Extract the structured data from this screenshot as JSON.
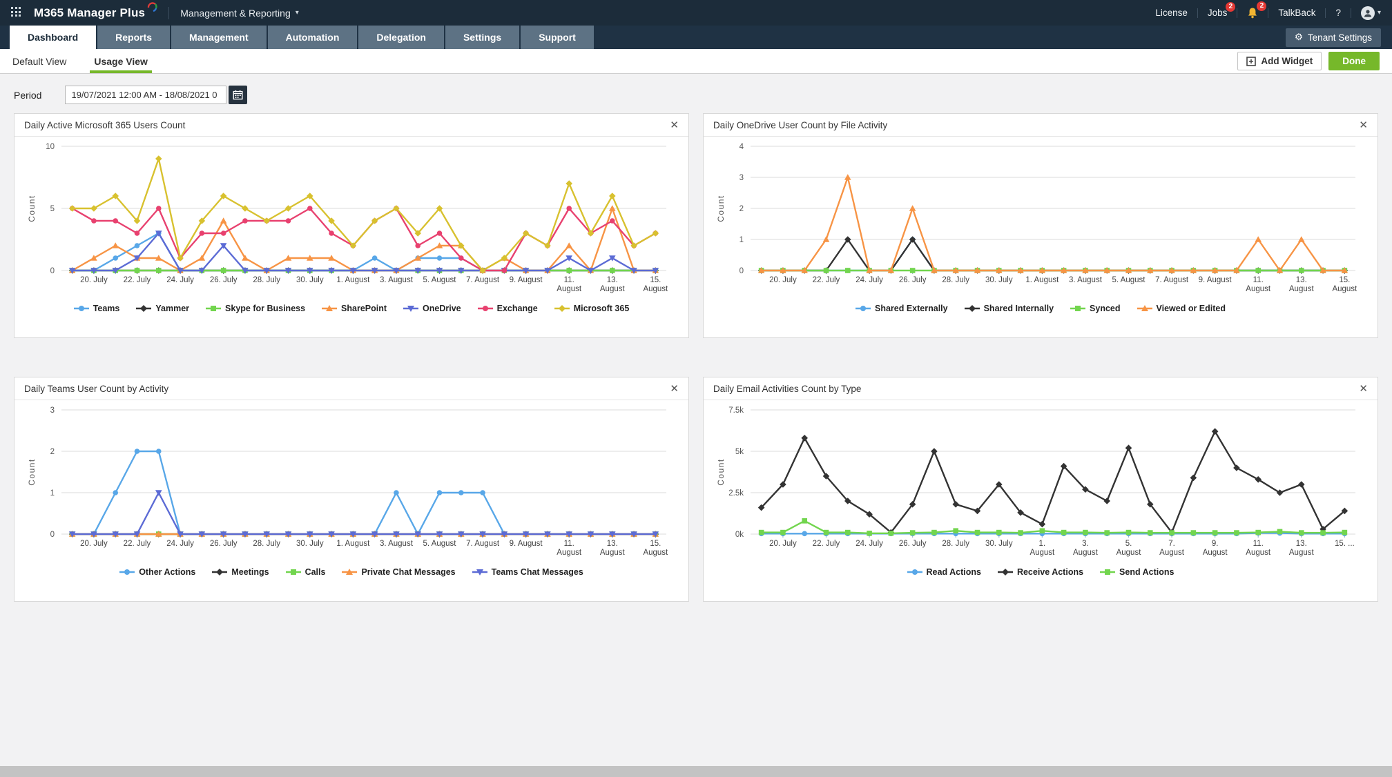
{
  "topbar": {
    "app_title": "M365 Manager Plus",
    "section_title": "Management & Reporting",
    "license_label": "License",
    "jobs_label": "Jobs",
    "jobs_badge": "2",
    "bell_badge": "2",
    "talkback_label": "TalkBack",
    "help_label": "?"
  },
  "nav_tabs": [
    {
      "label": "Dashboard",
      "active": true
    },
    {
      "label": "Reports",
      "active": false
    },
    {
      "label": "Management",
      "active": false
    },
    {
      "label": "Automation",
      "active": false
    },
    {
      "label": "Delegation",
      "active": false
    },
    {
      "label": "Settings",
      "active": false
    },
    {
      "label": "Support",
      "active": false
    }
  ],
  "tenant_settings_label": "Tenant Settings",
  "view_tabs": [
    {
      "label": "Default View",
      "active": false
    },
    {
      "label": "Usage View",
      "active": true
    }
  ],
  "add_widget_label": "Add Widget",
  "done_label": "Done",
  "period": {
    "label": "Period",
    "value": "19/07/2021 12:00 AM - 18/08/2021 0"
  },
  "colors": {
    "accent_green": "#76b82a",
    "badge_red": "#e53935",
    "topbar_bg": "#1c2c3a"
  },
  "chart_data": [
    {
      "type": "line",
      "title": "Daily Active Microsoft 365 Users Count",
      "ylabel": "Count",
      "ylim": [
        0,
        10
      ],
      "grid": true,
      "legend_position": "bottom",
      "yticks": [
        {
          "v": 0,
          "label": "0"
        },
        {
          "v": 5,
          "label": "5"
        },
        {
          "v": 10,
          "label": "10"
        }
      ],
      "x": [
        "19 Jul",
        "20 Jul",
        "21 Jul",
        "22 Jul",
        "23 Jul",
        "24 Jul",
        "25 Jul",
        "26 Jul",
        "27 Jul",
        "28 Jul",
        "29 Jul",
        "30 Jul",
        "31 Jul",
        "1 Aug",
        "2 Aug",
        "3 Aug",
        "4 Aug",
        "5 Aug",
        "6 Aug",
        "7 Aug",
        "8 Aug",
        "9 Aug",
        "10 Aug",
        "11 Aug",
        "12 Aug",
        "13 Aug",
        "14 Aug",
        "15 Aug"
      ],
      "tick_labels": [
        "20. July",
        "22. July",
        "24. July",
        "26. July",
        "28. July",
        "30. July",
        "1. August",
        "3. August",
        "5. August",
        "7. August",
        "9. August",
        "11.\nAugust",
        "13.\nAugust",
        "15.\nAugust"
      ],
      "series": [
        {
          "name": "Teams",
          "color": "#58a7e8",
          "marker": "circle",
          "values": [
            0,
            0,
            1,
            2,
            3,
            0,
            0,
            0,
            0,
            0,
            0,
            0,
            0,
            0,
            1,
            0,
            1,
            1,
            1,
            0,
            0,
            0,
            0,
            0,
            0,
            0,
            0,
            0
          ]
        },
        {
          "name": "Yammer",
          "color": "#333333",
          "marker": "diamond",
          "values": [
            0,
            0,
            0,
            0,
            0,
            0,
            0,
            0,
            0,
            0,
            0,
            0,
            0,
            0,
            0,
            0,
            0,
            0,
            0,
            0,
            0,
            0,
            0,
            0,
            0,
            0,
            0,
            0
          ]
        },
        {
          "name": "Skype for Business",
          "color": "#72d54e",
          "marker": "square",
          "values": [
            0,
            0,
            0,
            0,
            0,
            0,
            0,
            0,
            0,
            0,
            0,
            0,
            0,
            0,
            0,
            0,
            0,
            0,
            0,
            0,
            0,
            0,
            0,
            0,
            0,
            0,
            0,
            0
          ]
        },
        {
          "name": "SharePoint",
          "color": "#f79445",
          "marker": "triangle-up",
          "values": [
            0,
            1,
            2,
            1,
            1,
            0,
            1,
            4,
            1,
            0,
            1,
            1,
            1,
            0,
            0,
            0,
            1,
            2,
            2,
            0,
            1,
            0,
            0,
            2,
            0,
            5,
            0,
            0
          ]
        },
        {
          "name": "OneDrive",
          "color": "#5c6bd5",
          "marker": "triangle-down",
          "values": [
            0,
            0,
            0,
            1,
            3,
            0,
            0,
            2,
            0,
            0,
            0,
            0,
            0,
            0,
            0,
            0,
            0,
            0,
            0,
            0,
            0,
            0,
            0,
            1,
            0,
            1,
            0,
            0
          ]
        },
        {
          "name": "Exchange",
          "color": "#e8416f",
          "marker": "circle",
          "values": [
            5,
            4,
            4,
            3,
            5,
            1,
            3,
            3,
            4,
            4,
            4,
            5,
            3,
            2,
            4,
            5,
            2,
            3,
            1,
            0,
            0,
            3,
            2,
            5,
            3,
            4,
            2,
            3
          ]
        },
        {
          "name": "Microsoft 365",
          "color": "#d8c12f",
          "marker": "diamond",
          "values": [
            5,
            5,
            6,
            4,
            9,
            1,
            4,
            6,
            5,
            4,
            5,
            6,
            4,
            2,
            4,
            5,
            3,
            5,
            2,
            0,
            1,
            3,
            2,
            7,
            3,
            6,
            2,
            3
          ]
        }
      ]
    },
    {
      "type": "line",
      "title": "Daily OneDrive User Count by File Activity",
      "ylabel": "Count",
      "ylim": [
        0,
        4
      ],
      "grid": true,
      "legend_position": "bottom",
      "yticks": [
        {
          "v": 0,
          "label": "0"
        },
        {
          "v": 1,
          "label": "1"
        },
        {
          "v": 2,
          "label": "2"
        },
        {
          "v": 3,
          "label": "3"
        },
        {
          "v": 4,
          "label": "4"
        }
      ],
      "x": [
        "19 Jul",
        "20 Jul",
        "21 Jul",
        "22 Jul",
        "23 Jul",
        "24 Jul",
        "25 Jul",
        "26 Jul",
        "27 Jul",
        "28 Jul",
        "29 Jul",
        "30 Jul",
        "31 Jul",
        "1 Aug",
        "2 Aug",
        "3 Aug",
        "4 Aug",
        "5 Aug",
        "6 Aug",
        "7 Aug",
        "8 Aug",
        "9 Aug",
        "10 Aug",
        "11 Aug",
        "12 Aug",
        "13 Aug",
        "14 Aug",
        "15 Aug"
      ],
      "tick_labels": [
        "20. July",
        "22. July",
        "24. July",
        "26. July",
        "28. July",
        "30. July",
        "1. August",
        "3. August",
        "5. August",
        "7. August",
        "9. August",
        "11.\nAugust",
        "13.\nAugust",
        "15.\nAugust"
      ],
      "series": [
        {
          "name": "Shared Externally",
          "color": "#58a7e8",
          "marker": "circle",
          "values": [
            0,
            0,
            0,
            0,
            0,
            0,
            0,
            1,
            0,
            0,
            0,
            0,
            0,
            0,
            0,
            0,
            0,
            0,
            0,
            0,
            0,
            0,
            0,
            0,
            0,
            0,
            0,
            0
          ]
        },
        {
          "name": "Shared Internally",
          "color": "#333333",
          "marker": "diamond",
          "values": [
            0,
            0,
            0,
            0,
            1,
            0,
            0,
            1,
            0,
            0,
            0,
            0,
            0,
            0,
            0,
            0,
            0,
            0,
            0,
            0,
            0,
            0,
            0,
            0,
            0,
            0,
            0,
            0
          ]
        },
        {
          "name": "Synced",
          "color": "#72d54e",
          "marker": "square",
          "values": [
            0,
            0,
            0,
            0,
            0,
            0,
            0,
            0,
            0,
            0,
            0,
            0,
            0,
            0,
            0,
            0,
            0,
            0,
            0,
            0,
            0,
            0,
            0,
            0,
            0,
            0,
            0,
            0
          ]
        },
        {
          "name": "Viewed or Edited",
          "color": "#f79445",
          "marker": "triangle-up",
          "values": [
            0,
            0,
            0,
            1,
            3,
            0,
            0,
            2,
            0,
            0,
            0,
            0,
            0,
            0,
            0,
            0,
            0,
            0,
            0,
            0,
            0,
            0,
            0,
            1,
            0,
            1,
            0,
            0
          ]
        }
      ]
    },
    {
      "type": "line",
      "title": "Daily Teams User Count by Activity",
      "ylabel": "Count",
      "ylim": [
        0,
        3
      ],
      "grid": true,
      "legend_position": "bottom",
      "yticks": [
        {
          "v": 0,
          "label": "0"
        },
        {
          "v": 1,
          "label": "1"
        },
        {
          "v": 2,
          "label": "2"
        },
        {
          "v": 3,
          "label": "3"
        }
      ],
      "x": [
        "19 Jul",
        "20 Jul",
        "21 Jul",
        "22 Jul",
        "23 Jul",
        "24 Jul",
        "25 Jul",
        "26 Jul",
        "27 Jul",
        "28 Jul",
        "29 Jul",
        "30 Jul",
        "31 Jul",
        "1 Aug",
        "2 Aug",
        "3 Aug",
        "4 Aug",
        "5 Aug",
        "6 Aug",
        "7 Aug",
        "8 Aug",
        "9 Aug",
        "10 Aug",
        "11 Aug",
        "12 Aug",
        "13 Aug",
        "14 Aug",
        "15 Aug"
      ],
      "tick_labels": [
        "20. July",
        "22. July",
        "24. July",
        "26. July",
        "28. July",
        "30. July",
        "1. August",
        "3. August",
        "5. August",
        "7. August",
        "9. August",
        "11.\nAugust",
        "13.\nAugust",
        "15.\nAugust"
      ],
      "series": [
        {
          "name": "Other Actions",
          "color": "#58a7e8",
          "marker": "circle",
          "values": [
            0,
            0,
            1,
            2,
            2,
            0,
            0,
            0,
            0,
            0,
            0,
            0,
            0,
            0,
            0,
            1,
            0,
            1,
            1,
            1,
            0,
            0,
            0,
            0,
            0,
            0,
            0,
            0
          ]
        },
        {
          "name": "Meetings",
          "color": "#333333",
          "marker": "diamond",
          "values": [
            0,
            0,
            0,
            0,
            0,
            0,
            0,
            0,
            0,
            0,
            0,
            0,
            0,
            0,
            0,
            0,
            0,
            0,
            0,
            0,
            0,
            0,
            0,
            0,
            0,
            0,
            0,
            0
          ]
        },
        {
          "name": "Calls",
          "color": "#72d54e",
          "marker": "square",
          "values": [
            0,
            0,
            0,
            0,
            0,
            0,
            0,
            0,
            0,
            0,
            0,
            0,
            0,
            0,
            0,
            0,
            0,
            0,
            0,
            0,
            0,
            0,
            0,
            0,
            0,
            0,
            0,
            0
          ]
        },
        {
          "name": "Private Chat Messages",
          "color": "#f79445",
          "marker": "triangle-up",
          "values": [
            0,
            0,
            0,
            0,
            0,
            0,
            0,
            0,
            0,
            0,
            0,
            0,
            0,
            0,
            0,
            0,
            0,
            0,
            0,
            0,
            0,
            0,
            0,
            0,
            0,
            0,
            0,
            0
          ]
        },
        {
          "name": "Teams Chat Messages",
          "color": "#5c6bd5",
          "marker": "triangle-down",
          "values": [
            0,
            0,
            0,
            0,
            1,
            0,
            0,
            0,
            0,
            0,
            0,
            0,
            0,
            0,
            0,
            0,
            0,
            0,
            0,
            0,
            0,
            0,
            0,
            0,
            0,
            0,
            0,
            0
          ]
        }
      ]
    },
    {
      "type": "line",
      "title": "Daily Email Activities Count by Type",
      "ylabel": "Count",
      "ylim": [
        0,
        7500
      ],
      "grid": true,
      "legend_position": "bottom",
      "yticks": [
        {
          "v": 0,
          "label": "0k"
        },
        {
          "v": 2500,
          "label": "2.5k"
        },
        {
          "v": 5000,
          "label": "5k"
        },
        {
          "v": 7500,
          "label": "7.5k"
        }
      ],
      "x": [
        "19 Jul",
        "20 Jul",
        "21 Jul",
        "22 Jul",
        "23 Jul",
        "24 Jul",
        "25 Jul",
        "26 Jul",
        "27 Jul",
        "28 Jul",
        "29 Jul",
        "30 Jul",
        "31 Jul",
        "1 Aug",
        "2 Aug",
        "3 Aug",
        "4 Aug",
        "5 Aug",
        "6 Aug",
        "7 Aug",
        "8 Aug",
        "9 Aug",
        "10 Aug",
        "11 Aug",
        "12 Aug",
        "13 Aug",
        "14 Aug",
        "15 Aug"
      ],
      "tick_labels": [
        "20. July",
        "22. July",
        "24. July",
        "26. July",
        "28. July",
        "30. July",
        "1.\nAugust",
        "3.\nAugust",
        "5.\nAugust",
        "7.\nAugust",
        "9.\nAugust",
        "11.\nAugust",
        "13.\nAugust",
        "15. ..."
      ],
      "series": [
        {
          "name": "Read Actions",
          "color": "#58a7e8",
          "marker": "circle",
          "values": [
            30,
            30,
            30,
            30,
            30,
            30,
            30,
            30,
            30,
            30,
            30,
            30,
            30,
            30,
            30,
            30,
            30,
            30,
            30,
            30,
            30,
            30,
            30,
            60,
            60,
            30,
            30,
            30
          ]
        },
        {
          "name": "Receive Actions",
          "color": "#333333",
          "marker": "diamond",
          "values": [
            1600,
            3000,
            5800,
            3500,
            2000,
            1200,
            100,
            1800,
            5000,
            1800,
            1400,
            3000,
            1300,
            600,
            4100,
            2700,
            2000,
            5200,
            1800,
            100,
            3400,
            6200,
            4000,
            3300,
            2500,
            3000,
            300,
            1400
          ]
        },
        {
          "name": "Send Actions",
          "color": "#72d54e",
          "marker": "square",
          "values": [
            100,
            100,
            800,
            100,
            100,
            50,
            50,
            80,
            100,
            200,
            100,
            100,
            80,
            200,
            100,
            100,
            80,
            100,
            80,
            80,
            80,
            80,
            80,
            100,
            150,
            80,
            80,
            100
          ]
        }
      ]
    }
  ]
}
